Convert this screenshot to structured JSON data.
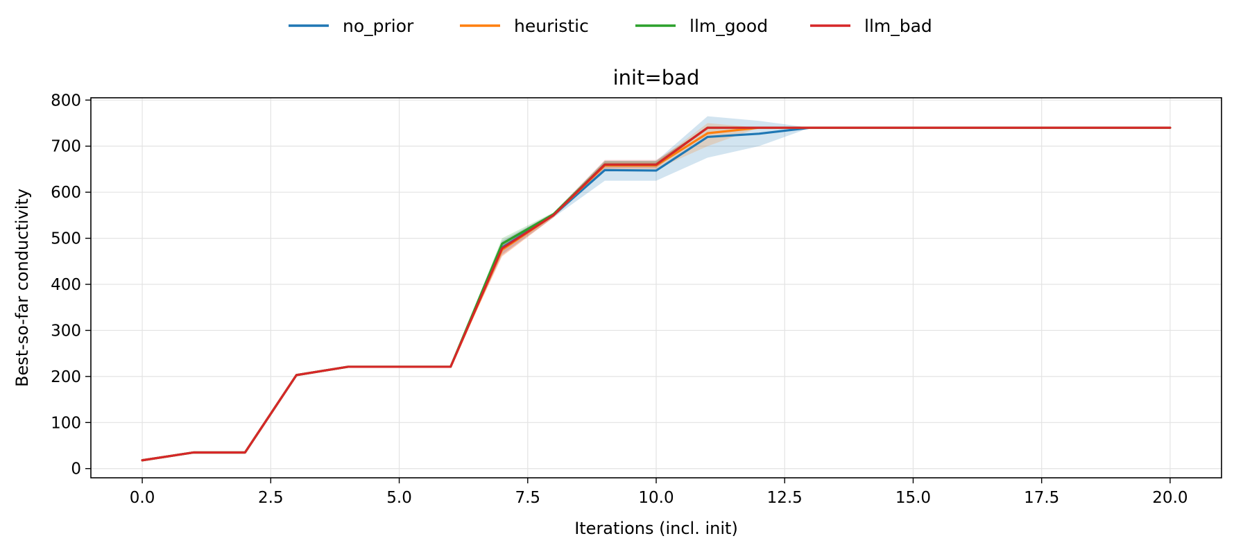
{
  "chart_data": {
    "type": "line",
    "title": "init=bad",
    "xlabel": "Iterations (incl. init)",
    "ylabel": "Best-so-far conductivity",
    "xlim": [
      -1,
      21
    ],
    "ylim": [
      -20,
      805
    ],
    "xticks": [
      0,
      2.5,
      5,
      7.5,
      10,
      12.5,
      15,
      17.5,
      20
    ],
    "xtick_labels": [
      "0.0",
      "2.5",
      "5.0",
      "7.5",
      "10.0",
      "12.5",
      "15.0",
      "17.5",
      "20.0"
    ],
    "yticks": [
      0,
      100,
      200,
      300,
      400,
      500,
      600,
      700,
      800
    ],
    "ytick_labels": [
      "0",
      "100",
      "200",
      "300",
      "400",
      "500",
      "600",
      "700",
      "800"
    ],
    "grid": true,
    "legend_position": "top-center",
    "x": [
      0,
      1,
      2,
      3,
      4,
      5,
      6,
      7,
      8,
      9,
      10,
      11,
      12,
      13,
      14,
      15,
      16,
      17,
      18,
      19,
      20
    ],
    "series": [
      {
        "name": "no_prior",
        "color": "#1f77b4",
        "values": [
          18,
          35,
          35,
          203,
          221,
          221,
          221,
          480,
          550,
          648,
          647,
          720,
          727,
          740,
          740,
          740,
          740,
          740,
          740,
          740,
          740
        ],
        "band_low": [
          18,
          35,
          35,
          203,
          221,
          221,
          221,
          465,
          545,
          625,
          625,
          675,
          700,
          740,
          740,
          740,
          740,
          740,
          740,
          740,
          740
        ],
        "band_high": [
          18,
          35,
          35,
          203,
          221,
          221,
          221,
          495,
          555,
          668,
          668,
          765,
          755,
          740,
          740,
          740,
          740,
          740,
          740,
          740,
          740
        ]
      },
      {
        "name": "heuristic",
        "color": "#ff7f0e",
        "values": [
          18,
          35,
          35,
          203,
          221,
          221,
          221,
          475,
          550,
          658,
          658,
          728,
          740,
          740,
          740,
          740,
          740,
          740,
          740,
          740,
          740
        ],
        "band_low": [
          18,
          35,
          35,
          203,
          221,
          221,
          221,
          460,
          545,
          650,
          650,
          700,
          740,
          740,
          740,
          740,
          740,
          740,
          740,
          740,
          740
        ],
        "band_high": [
          18,
          35,
          35,
          203,
          221,
          221,
          221,
          490,
          555,
          666,
          666,
          750,
          740,
          740,
          740,
          740,
          740,
          740,
          740,
          740,
          740
        ]
      },
      {
        "name": "llm_good",
        "color": "#2ca02c",
        "values": [
          18,
          35,
          35,
          203,
          221,
          221,
          221,
          488,
          552,
          660,
          660,
          740,
          740,
          740,
          740,
          740,
          740,
          740,
          740,
          740,
          740
        ],
        "band_low": [
          18,
          35,
          35,
          203,
          221,
          221,
          221,
          478,
          548,
          655,
          655,
          740,
          740,
          740,
          740,
          740,
          740,
          740,
          740,
          740,
          740
        ],
        "band_high": [
          18,
          35,
          35,
          203,
          221,
          221,
          221,
          500,
          556,
          668,
          668,
          740,
          740,
          740,
          740,
          740,
          740,
          740,
          740,
          740,
          740
        ]
      },
      {
        "name": "llm_bad",
        "color": "#d62728",
        "values": [
          18,
          35,
          35,
          203,
          221,
          221,
          221,
          478,
          550,
          660,
          660,
          740,
          740,
          740,
          740,
          740,
          740,
          740,
          740,
          740,
          740
        ],
        "band_low": [
          18,
          35,
          35,
          203,
          221,
          221,
          221,
          462,
          545,
          652,
          652,
          740,
          740,
          740,
          740,
          740,
          740,
          740,
          740,
          740,
          740
        ],
        "band_high": [
          18,
          35,
          35,
          203,
          221,
          221,
          221,
          492,
          555,
          670,
          670,
          740,
          740,
          740,
          740,
          740,
          740,
          740,
          740,
          740,
          740
        ]
      }
    ]
  }
}
